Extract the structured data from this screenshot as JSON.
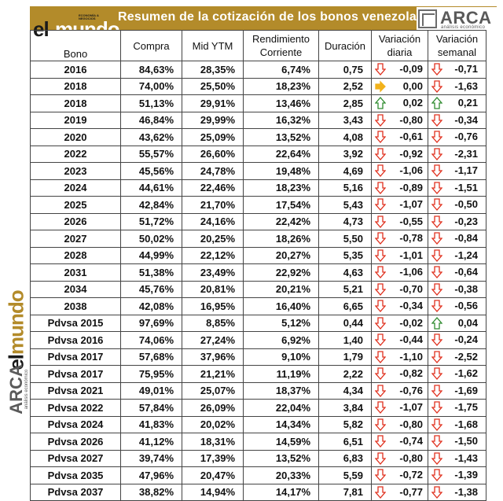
{
  "banner": {
    "title": "Resumen de la cotización de los bonos venezolanos",
    "left_logo": {
      "el": "el",
      "mundo": "mundo",
      "tiny": "ECONOMÍA & NEGOCIOS"
    },
    "right_logo": {
      "word": "ARCA",
      "sub": "análisis económico"
    }
  },
  "left_logos": {
    "el": "el",
    "mundo": "mundo",
    "arca": "ARCA",
    "arca_sub": "análisis económico"
  },
  "colors": {
    "gold": "#b38b2a",
    "down": "#e0301e",
    "up": "#2e8b2e",
    "flat": "#f2b21b"
  },
  "headers": {
    "bono": "Bono",
    "compra": "Compra",
    "mid": "Mid YTM",
    "rend": "Rendimiento Corriente",
    "dur": "Duración",
    "vd": "Variación diaria",
    "vs": "Variación semanal"
  },
  "rows": [
    {
      "bono": "2016",
      "compra": "84,63%",
      "mid": "28,35%",
      "rend": "6,74%",
      "dur": "0,75",
      "vd": "-0,09",
      "vd_dir": "down",
      "vs": "-0,71",
      "vs_dir": "down"
    },
    {
      "bono": "2018",
      "compra": "74,00%",
      "mid": "25,50%",
      "rend": "18,23%",
      "dur": "2,52",
      "vd": "0,00",
      "vd_dir": "flat",
      "vs": "-1,63",
      "vs_dir": "down"
    },
    {
      "bono": "2018",
      "compra": "51,13%",
      "mid": "29,91%",
      "rend": "13,46%",
      "dur": "2,85",
      "vd": "0,02",
      "vd_dir": "up",
      "vs": "0,21",
      "vs_dir": "up"
    },
    {
      "bono": "2019",
      "compra": "46,84%",
      "mid": "29,99%",
      "rend": "16,32%",
      "dur": "3,43",
      "vd": "-0,80",
      "vd_dir": "down",
      "vs": "-0,34",
      "vs_dir": "down"
    },
    {
      "bono": "2020",
      "compra": "43,62%",
      "mid": "25,09%",
      "rend": "13,52%",
      "dur": "4,08",
      "vd": "-0,61",
      "vd_dir": "down",
      "vs": "-0,76",
      "vs_dir": "down"
    },
    {
      "bono": "2022",
      "compra": "55,57%",
      "mid": "26,60%",
      "rend": "22,64%",
      "dur": "3,92",
      "vd": "-0,92",
      "vd_dir": "down",
      "vs": "-2,31",
      "vs_dir": "down"
    },
    {
      "bono": "2023",
      "compra": "45,56%",
      "mid": "24,78%",
      "rend": "19,48%",
      "dur": "4,69",
      "vd": "-1,06",
      "vd_dir": "down",
      "vs": "-1,17",
      "vs_dir": "down"
    },
    {
      "bono": "2024",
      "compra": "44,61%",
      "mid": "22,46%",
      "rend": "18,23%",
      "dur": "5,16",
      "vd": "-0,89",
      "vd_dir": "down",
      "vs": "-1,51",
      "vs_dir": "down"
    },
    {
      "bono": "2025",
      "compra": "42,84%",
      "mid": "21,70%",
      "rend": "17,54%",
      "dur": "5,43",
      "vd": "-1,07",
      "vd_dir": "down",
      "vs": "-0,50",
      "vs_dir": "down"
    },
    {
      "bono": "2026",
      "compra": "51,72%",
      "mid": "24,16%",
      "rend": "22,42%",
      "dur": "4,73",
      "vd": "-0,55",
      "vd_dir": "down",
      "vs": "-0,23",
      "vs_dir": "down"
    },
    {
      "bono": "2027",
      "compra": "50,02%",
      "mid": "20,25%",
      "rend": "18,26%",
      "dur": "5,50",
      "vd": "-0,78",
      "vd_dir": "down",
      "vs": "-0,84",
      "vs_dir": "down"
    },
    {
      "bono": "2028",
      "compra": "44,99%",
      "mid": "22,12%",
      "rend": "20,27%",
      "dur": "5,35",
      "vd": "-1,01",
      "vd_dir": "down",
      "vs": "-1,24",
      "vs_dir": "down"
    },
    {
      "bono": "2031",
      "compra": "51,38%",
      "mid": "23,49%",
      "rend": "22,92%",
      "dur": "4,63",
      "vd": "-1,06",
      "vd_dir": "down",
      "vs": "-0,64",
      "vs_dir": "down"
    },
    {
      "bono": "2034",
      "compra": "45,76%",
      "mid": "20,81%",
      "rend": "20,21%",
      "dur": "5,21",
      "vd": "-0,70",
      "vd_dir": "down",
      "vs": "-0,38",
      "vs_dir": "down"
    },
    {
      "bono": "2038",
      "compra": "42,08%",
      "mid": "16,95%",
      "rend": "16,40%",
      "dur": "6,65",
      "vd": "-0,34",
      "vd_dir": "down",
      "vs": "-0,56",
      "vs_dir": "down"
    },
    {
      "bono": "Pdvsa 2015",
      "compra": "97,69%",
      "mid": "8,85%",
      "rend": "5,12%",
      "dur": "0,44",
      "vd": "-0,02",
      "vd_dir": "down",
      "vs": "0,04",
      "vs_dir": "up"
    },
    {
      "bono": "Pdvsa 2016",
      "compra": "74,06%",
      "mid": "27,24%",
      "rend": "6,92%",
      "dur": "1,40",
      "vd": "-0,44",
      "vd_dir": "down",
      "vs": "-0,24",
      "vs_dir": "down"
    },
    {
      "bono": "Pdvsa 2017",
      "compra": "57,68%",
      "mid": "37,96%",
      "rend": "9,10%",
      "dur": "1,79",
      "vd": "-1,10",
      "vd_dir": "down",
      "vs": "-2,52",
      "vs_dir": "down"
    },
    {
      "bono": "Pdvsa 2017",
      "compra": "75,95%",
      "mid": "21,21%",
      "rend": "11,19%",
      "dur": "2,22",
      "vd": "-0,82",
      "vd_dir": "down",
      "vs": "-1,62",
      "vs_dir": "down"
    },
    {
      "bono": "Pdvsa 2021",
      "compra": "49,01%",
      "mid": "25,07%",
      "rend": "18,37%",
      "dur": "4,34",
      "vd": "-0,76",
      "vd_dir": "down",
      "vs": "-1,69",
      "vs_dir": "down"
    },
    {
      "bono": "Pdvsa 2022",
      "compra": "57,84%",
      "mid": "26,09%",
      "rend": "22,04%",
      "dur": "3,84",
      "vd": "-1,07",
      "vd_dir": "down",
      "vs": "-1,75",
      "vs_dir": "down"
    },
    {
      "bono": "Pdvsa 2024",
      "compra": "41,83%",
      "mid": "20,02%",
      "rend": "14,34%",
      "dur": "5,82",
      "vd": "-0,80",
      "vd_dir": "down",
      "vs": "-1,68",
      "vs_dir": "down"
    },
    {
      "bono": "Pdvsa 2026",
      "compra": "41,12%",
      "mid": "18,31%",
      "rend": "14,59%",
      "dur": "6,51",
      "vd": "-0,74",
      "vd_dir": "down",
      "vs": "-1,50",
      "vs_dir": "down"
    },
    {
      "bono": "Pdvsa 2027",
      "compra": "39,74%",
      "mid": "17,39%",
      "rend": "13,52%",
      "dur": "6,83",
      "vd": "-0,80",
      "vd_dir": "down",
      "vs": "-1,43",
      "vs_dir": "down"
    },
    {
      "bono": "Pdvsa 2035",
      "compra": "47,96%",
      "mid": "20,47%",
      "rend": "20,33%",
      "dur": "5,59",
      "vd": "-0,72",
      "vd_dir": "down",
      "vs": "-1,39",
      "vs_dir": "down"
    },
    {
      "bono": "Pdvsa 2037",
      "compra": "38,82%",
      "mid": "14,94%",
      "rend": "14,17%",
      "dur": "7,81",
      "vd": "-0,77",
      "vd_dir": "down",
      "vs": "-1,38",
      "vs_dir": "down"
    }
  ]
}
